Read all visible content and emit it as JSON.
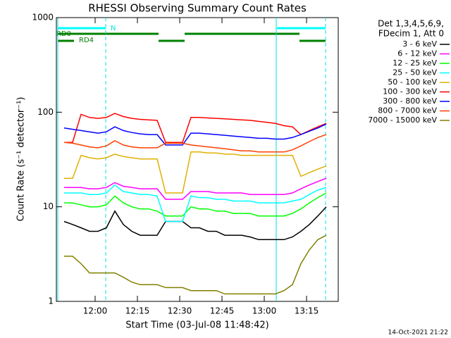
{
  "chart_data": {
    "type": "line",
    "title": "RHESSI Observing Summary Count Rates",
    "xlabel": "Start Time (03-Jul-08 11:48:42)",
    "ylabel": "Count Rate (s⁻¹ detector⁻¹)",
    "footer": "14-Oct-2021 21:22",
    "legend_header": [
      "Det 1,3,4,5,6,9,",
      "FDecim 1, Att 0"
    ],
    "annotations": [
      "N",
      "RD0",
      "RD4"
    ],
    "log_y": true,
    "x": [
      709,
      712,
      715,
      718,
      721,
      724,
      727,
      730,
      733,
      736,
      739,
      742,
      745,
      748,
      751,
      754,
      757,
      760,
      763,
      766,
      769,
      772,
      775,
      778,
      781,
      784,
      787,
      790,
      793,
      796,
      799,
      802
    ],
    "xlim": [
      706.25,
      806.25
    ],
    "xticks": [
      {
        "value": 720,
        "label": "12:00"
      },
      {
        "value": 735,
        "label": "12:15"
      },
      {
        "value": 750,
        "label": "12:30"
      },
      {
        "value": 765,
        "label": "12:45"
      },
      {
        "value": 780,
        "label": "13:00"
      },
      {
        "value": 795,
        "label": "13:15"
      }
    ],
    "ylim": [
      1,
      1000
    ],
    "yticks": [
      1,
      10,
      100,
      1000
    ],
    "series": [
      {
        "name": "3 - 6 keV",
        "color": "#000000",
        "values": [
          7,
          6.5,
          6,
          5.5,
          5.5,
          6,
          9,
          6.5,
          5.5,
          5,
          5,
          5,
          7,
          7,
          7,
          6,
          6,
          5.5,
          5.5,
          5,
          5,
          5,
          4.8,
          4.5,
          4.5,
          4.5,
          4.5,
          4.8,
          5.5,
          6.5,
          8,
          10
        ]
      },
      {
        "name": "6 - 12 keV",
        "color": "#ff00ff",
        "values": [
          16,
          16,
          16,
          15.5,
          15.5,
          16,
          18,
          16.5,
          16,
          15.5,
          15.5,
          15.5,
          12,
          12,
          12,
          14.5,
          14.5,
          14.5,
          14,
          14,
          14,
          14,
          13.5,
          13.5,
          13.5,
          13.5,
          13.5,
          14,
          15.5,
          17,
          18.5,
          20
        ]
      },
      {
        "name": "12 - 25 keV",
        "color": "#00ff00",
        "values": [
          11,
          11,
          10.5,
          10,
          10,
          10.5,
          13,
          11,
          10,
          9.5,
          9.5,
          9,
          8,
          8,
          8,
          10,
          9.5,
          9.5,
          9,
          9,
          8.5,
          8.5,
          8.5,
          8,
          8,
          8,
          8,
          8.5,
          9.5,
          11,
          12.5,
          14
        ]
      },
      {
        "name": "25 - 50 keV",
        "color": "#00ffff",
        "values": [
          14,
          14,
          14,
          13.5,
          13.5,
          14,
          17,
          14.5,
          14,
          13.5,
          13.5,
          13,
          7,
          7,
          7,
          13,
          12.5,
          12.5,
          12,
          12,
          11.5,
          11.5,
          11.5,
          11,
          11,
          11,
          11,
          11.5,
          12,
          13.5,
          15,
          16
        ]
      },
      {
        "name": "50 - 100 keV",
        "color": "#e0b000",
        "values": [
          20,
          20,
          35,
          33,
          32,
          33,
          36,
          34,
          33,
          32,
          32,
          32,
          14,
          14,
          14,
          38,
          38,
          37,
          37,
          36,
          36,
          35,
          35,
          35,
          35,
          35,
          35,
          35,
          21,
          23,
          25,
          27
        ]
      },
      {
        "name": "100 - 300 keV",
        "color": "#ff0000",
        "values": [
          48,
          48,
          95,
          88,
          86,
          88,
          97,
          90,
          86,
          84,
          83,
          82,
          48,
          48,
          48,
          88,
          88,
          87,
          86,
          85,
          84,
          83,
          82,
          80,
          78,
          76,
          72,
          70,
          58,
          64,
          70,
          76
        ]
      },
      {
        "name": "300 - 800 keV",
        "color": "#0000ff",
        "values": [
          68,
          66,
          64,
          62,
          60,
          62,
          70,
          64,
          61,
          59,
          58,
          58,
          45,
          45,
          45,
          60,
          60,
          59,
          58,
          57,
          56,
          55,
          54,
          53,
          53,
          52,
          52,
          54,
          58,
          63,
          68,
          75
        ]
      },
      {
        "name": "800 - 7000 keV",
        "color": "#ff4000",
        "values": [
          48,
          47,
          45,
          43,
          42,
          44,
          50,
          45,
          43,
          42,
          42,
          42,
          47,
          47,
          47,
          45,
          44,
          43,
          42,
          41,
          40,
          39,
          39,
          38,
          38,
          38,
          38,
          40,
          44,
          49,
          54,
          58
        ]
      },
      {
        "name": "7000 - 15000 keV",
        "color": "#808000",
        "values": [
          3,
          3,
          2.5,
          2,
          2,
          2,
          2,
          1.8,
          1.6,
          1.5,
          1.5,
          1.5,
          1.4,
          1.4,
          1.4,
          1.3,
          1.3,
          1.3,
          1.3,
          1.2,
          1.2,
          1.2,
          1.2,
          1.2,
          1.2,
          1.2,
          1.3,
          1.5,
          2.5,
          3.5,
          4.5,
          5
        ]
      }
    ]
  }
}
